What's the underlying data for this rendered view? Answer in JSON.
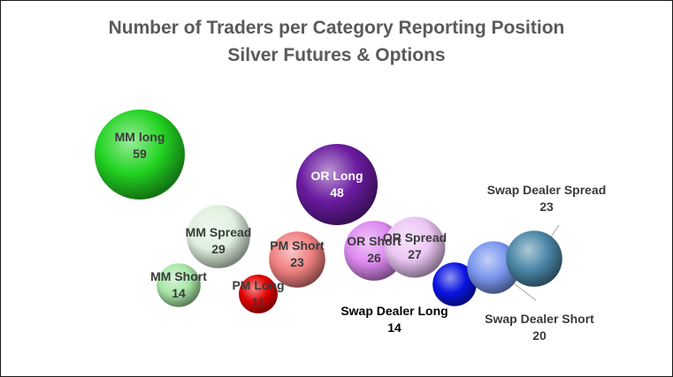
{
  "chart_data": {
    "type": "bubble",
    "title": [
      "Number of Traders per Category Reporting Position",
      "Silver Futures & Options"
    ],
    "xlabel": "",
    "ylabel": "",
    "legend": "none",
    "grid": false,
    "series": [
      {
        "name": "MM long",
        "value": 59,
        "color": "#22d422",
        "label_color": "#3a3a3a"
      },
      {
        "name": "MM Spread",
        "value": 29,
        "color": "#dff0df",
        "label_color": "#3a3a3a"
      },
      {
        "name": "MM Short",
        "value": 14,
        "color": "#a8e6a8",
        "label_color": "#3a3a3a"
      },
      {
        "name": "PM Long",
        "value": 11,
        "color": "#e00000",
        "label_color": "#3a3a3a"
      },
      {
        "name": "PM Short",
        "value": 23,
        "color": "#f08080",
        "label_color": "#3a3a3a"
      },
      {
        "name": "OR Long",
        "value": 48,
        "color": "#6a1ba0",
        "label_color": "#ffffff"
      },
      {
        "name": "OR Short",
        "value": 26,
        "color": "#dd88f0",
        "label_color": "#3a3a3a"
      },
      {
        "name": "OR Spread",
        "value": 27,
        "color": "#ecc6f4",
        "label_color": "#3a3a3a"
      },
      {
        "name": "Swap Dealer Long",
        "value": 14,
        "color": "#0a14e0",
        "label_color": "#000000"
      },
      {
        "name": "Swap Dealer Short",
        "value": 20,
        "color": "#7a96ee",
        "label_color": "#3a3a3a"
      },
      {
        "name": "Swap Dealer Spread",
        "value": 23,
        "color": "#4a86a6",
        "label_color": "#3a3a3a"
      }
    ]
  }
}
